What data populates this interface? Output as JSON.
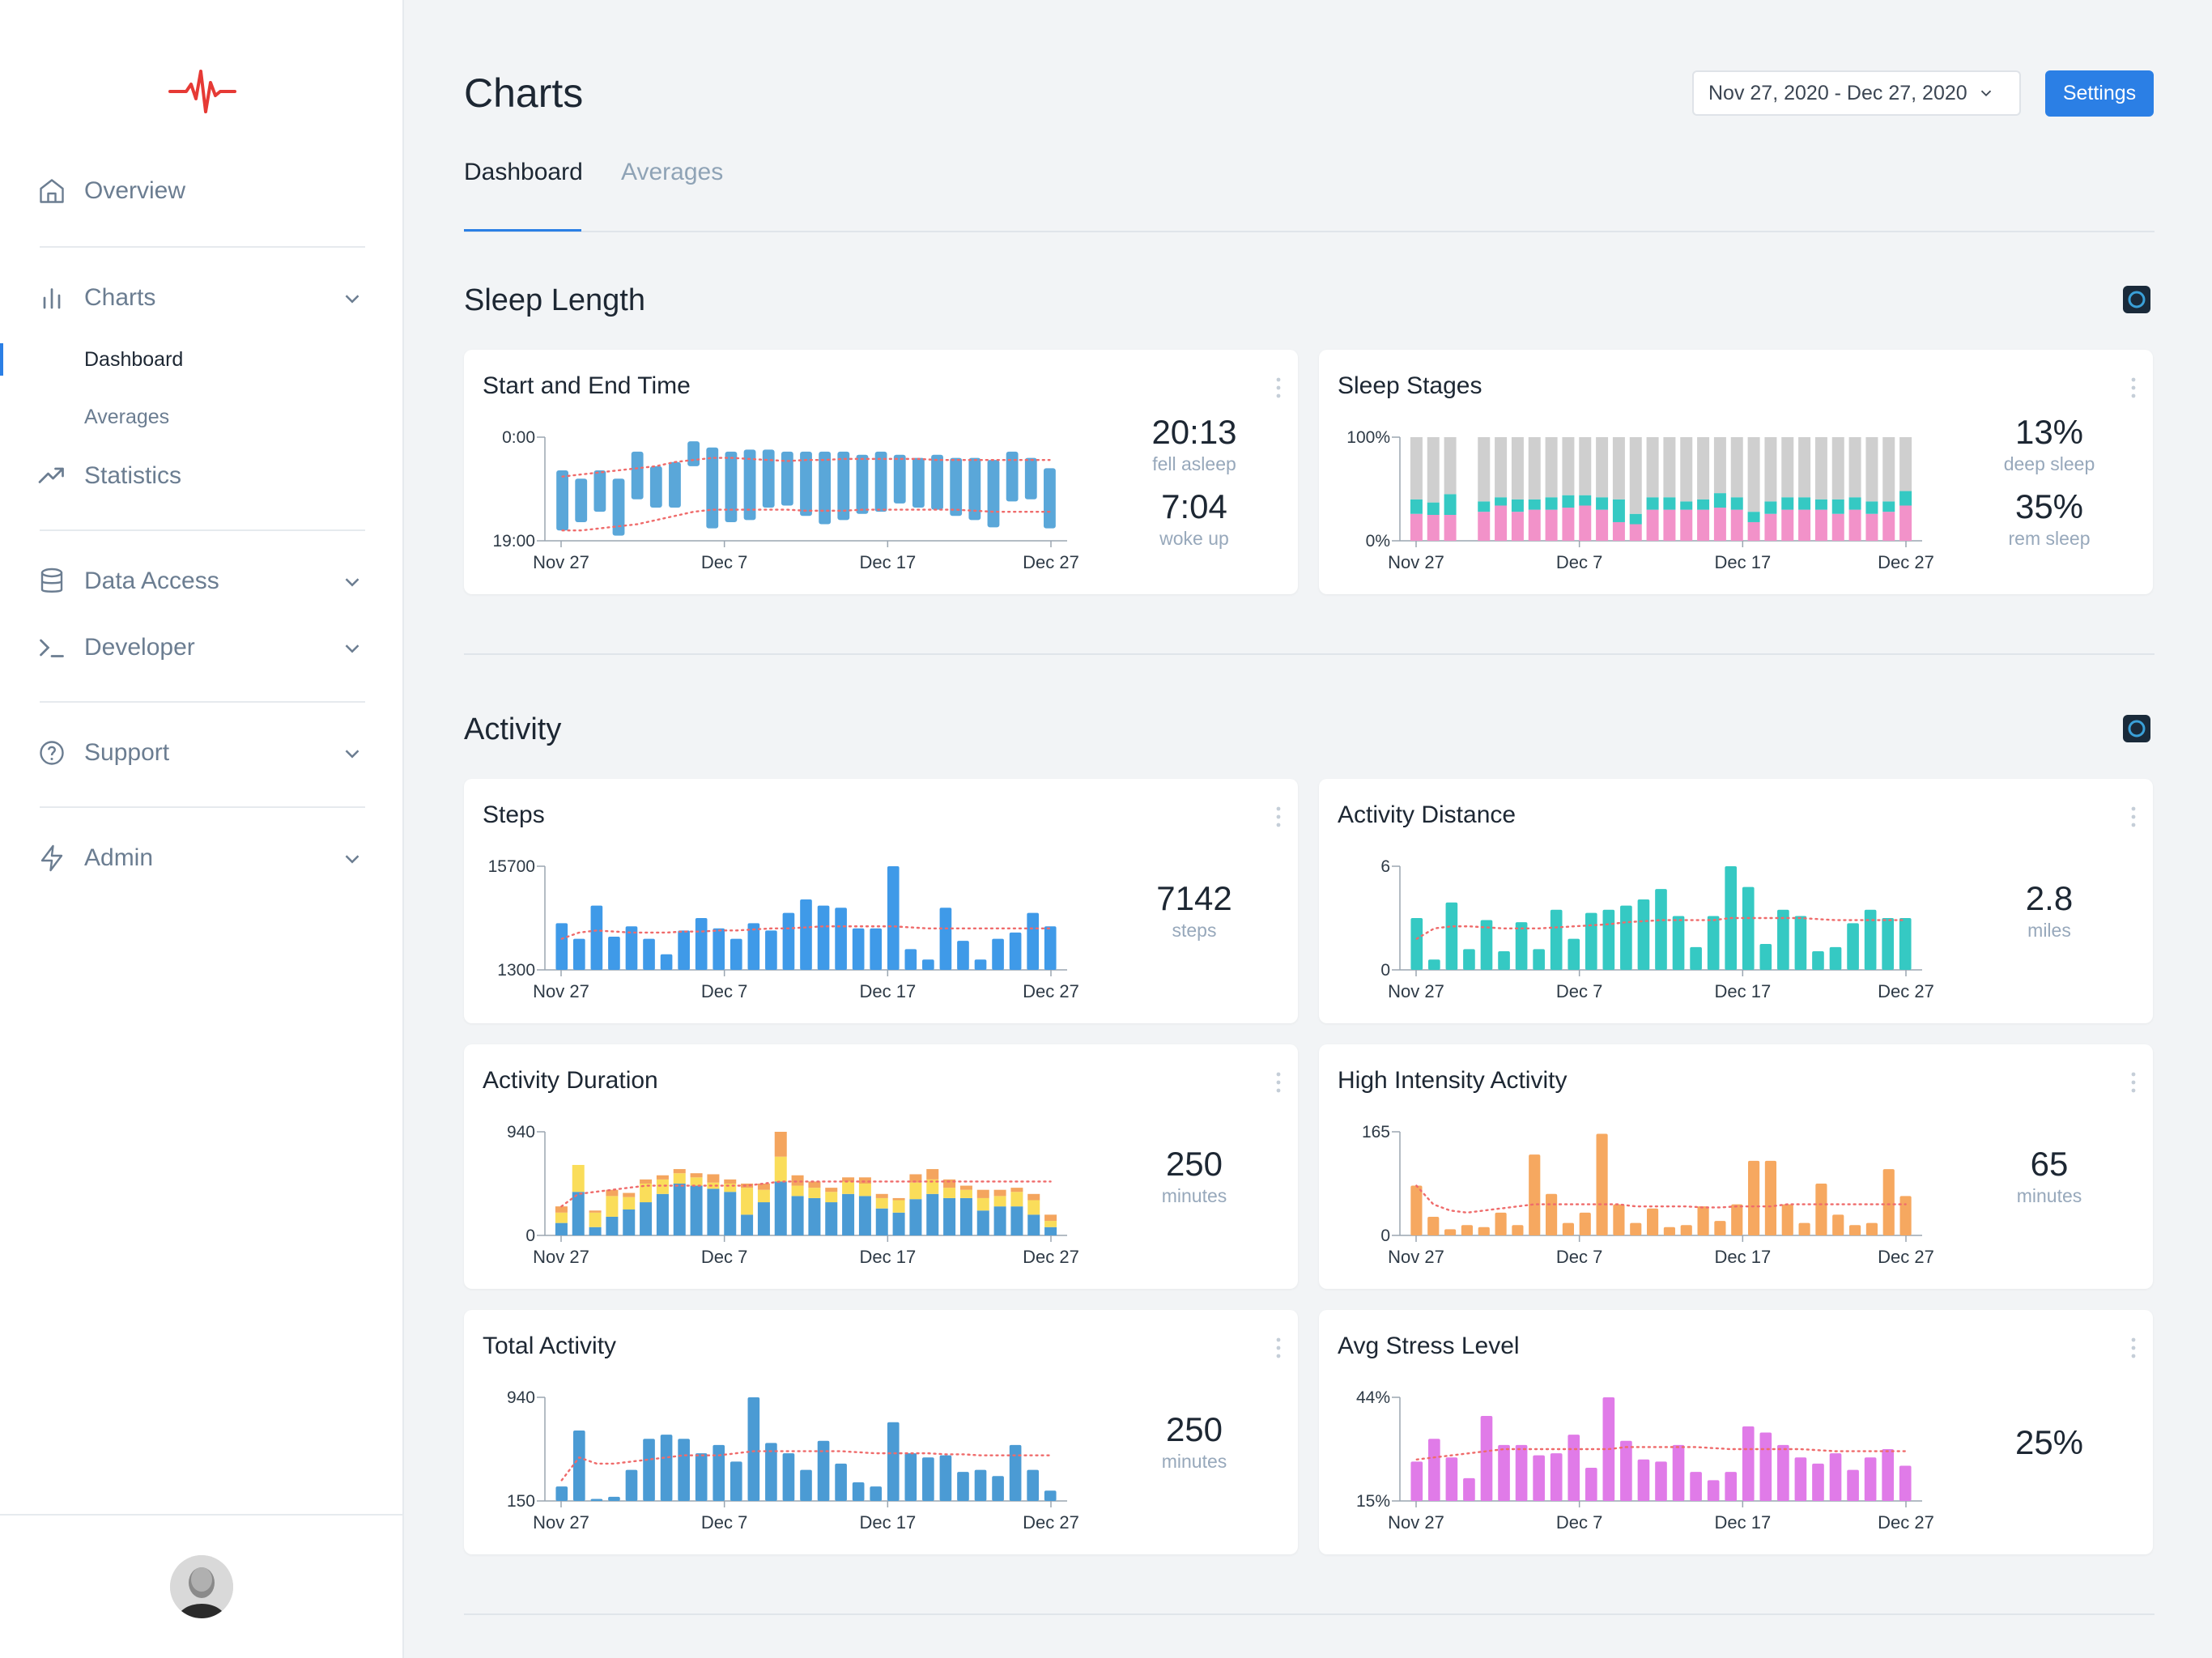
{
  "app": {
    "page_title": "Charts",
    "date_range": "Nov 27, 2020 - Dec 27, 2020",
    "settings_label": "Settings",
    "accent": "#2b7fe5"
  },
  "sidebar": {
    "logo": "heartbeat-logo-icon",
    "items": {
      "overview": "Overview",
      "charts": "Charts",
      "dashboard": "Dashboard",
      "averages": "Averages",
      "statistics": "Statistics",
      "data_access": "Data Access",
      "developer": "Developer",
      "support": "Support",
      "admin": "Admin"
    }
  },
  "tabs": {
    "dashboard": "Dashboard",
    "averages": "Averages"
  },
  "sections": {
    "sleep": "Sleep Length",
    "activity": "Activity"
  },
  "cards": {
    "start_end": {
      "title": "Start and End Time",
      "stat1_value": "20:13",
      "stat1_label": "fell asleep",
      "stat2_value": "7:04",
      "stat2_label": "woke up"
    },
    "sleep_stages": {
      "title": "Sleep Stages",
      "stat1_value": "13%",
      "stat1_label": "deep sleep",
      "stat2_value": "35%",
      "stat2_label": "rem sleep"
    },
    "steps": {
      "title": "Steps",
      "value": "7142",
      "label": "steps"
    },
    "distance": {
      "title": "Activity Distance",
      "value": "2.8",
      "label": "miles"
    },
    "duration": {
      "title": "Activity Duration",
      "value": "250",
      "label": "minutes"
    },
    "high_intensity": {
      "title": "High Intensity Activity",
      "value": "65",
      "label": "minutes"
    },
    "total": {
      "title": "Total Activity",
      "value": "250",
      "label": "minutes"
    },
    "stress": {
      "title": "Avg Stress Level",
      "value": "25%"
    }
  },
  "chart_data": [
    {
      "id": "start_end",
      "type": "bar",
      "subtype": "range",
      "title": "Start and End Time",
      "x_ticks": [
        "Nov 27",
        "Dec 7",
        "Dec 17",
        "Dec 27"
      ],
      "y_ticks": [
        "0:00",
        "19:00"
      ],
      "color": "#5aa7d9",
      "ranges": [
        [
          0.32,
          0.9
        ],
        [
          0.4,
          0.82
        ],
        [
          0.32,
          0.72
        ],
        [
          0.4,
          0.95
        ],
        [
          0.14,
          0.6
        ],
        [
          0.28,
          0.68
        ],
        [
          0.24,
          0.68
        ],
        [
          0.04,
          0.28
        ],
        [
          0.1,
          0.88
        ],
        [
          0.14,
          0.82
        ],
        [
          0.12,
          0.8
        ],
        [
          0.12,
          0.68
        ],
        [
          0.14,
          0.66
        ],
        [
          0.14,
          0.76
        ],
        [
          0.14,
          0.84
        ],
        [
          0.14,
          0.8
        ],
        [
          0.17,
          0.74
        ],
        [
          0.14,
          0.72
        ],
        [
          0.17,
          0.64
        ],
        [
          0.2,
          0.68
        ],
        [
          0.17,
          0.7
        ],
        [
          0.2,
          0.76
        ],
        [
          0.2,
          0.8
        ],
        [
          0.22,
          0.87
        ],
        [
          0.14,
          0.62
        ],
        [
          0.2,
          0.6
        ],
        [
          0.3,
          0.88
        ]
      ],
      "trend": [
        0.38,
        0.36,
        0.34,
        0.32,
        0.3,
        0.28,
        0.24,
        0.22,
        0.2,
        0.2,
        0.21,
        0.22,
        0.23,
        0.22,
        0.22,
        0.21,
        0.21,
        0.21,
        0.21,
        0.21,
        0.22,
        0.22,
        0.22,
        0.22,
        0.22,
        0.22,
        0.22
      ],
      "trend2": [
        0.9,
        0.9,
        0.88,
        0.86,
        0.84,
        0.8,
        0.76,
        0.72,
        0.7,
        0.7,
        0.7,
        0.7,
        0.7,
        0.71,
        0.71,
        0.71,
        0.7,
        0.7,
        0.7,
        0.7,
        0.7,
        0.7,
        0.71,
        0.72,
        0.72,
        0.72,
        0.72
      ]
    },
    {
      "id": "sleep_stages",
      "type": "bar",
      "subtype": "stacked",
      "title": "Sleep Stages",
      "x_ticks": [
        "Nov 27",
        "Dec 7",
        "Dec 17",
        "Dec 27"
      ],
      "y_ticks": [
        "100%",
        "0%"
      ],
      "series": [
        {
          "name": "rem",
          "color": "#f292c9",
          "values": [
            0.26,
            0.25,
            0.25,
            0,
            0.28,
            0.34,
            0.28,
            0.3,
            0.3,
            0.32,
            0.34,
            0.3,
            0.18,
            0.16,
            0.3,
            0.3,
            0.3,
            0.3,
            0.32,
            0.3,
            0.18,
            0.26,
            0.3,
            0.3,
            0.3,
            0.26,
            0.3,
            0.26,
            0.28,
            0.34
          ]
        },
        {
          "name": "deep",
          "color": "#35c9c3",
          "values": [
            0.14,
            0.12,
            0.2,
            0,
            0.1,
            0.08,
            0.12,
            0.1,
            0.12,
            0.12,
            0.1,
            0.12,
            0.22,
            0.1,
            0.12,
            0.12,
            0.08,
            0.1,
            0.14,
            0.12,
            0.1,
            0.12,
            0.12,
            0.12,
            0.1,
            0.14,
            0.12,
            0.12,
            0.1,
            0.14
          ]
        },
        {
          "name": "light",
          "color": "#cfcfcf",
          "values": [
            0.6,
            0.63,
            0.55,
            0,
            0.62,
            0.58,
            0.6,
            0.6,
            0.58,
            0.56,
            0.56,
            0.58,
            0.6,
            0.74,
            0.58,
            0.58,
            0.62,
            0.6,
            0.54,
            0.58,
            0.72,
            0.62,
            0.58,
            0.58,
            0.6,
            0.6,
            0.58,
            0.62,
            0.62,
            0.52
          ]
        }
      ]
    },
    {
      "id": "steps",
      "type": "bar",
      "title": "Steps",
      "x_ticks": [
        "Nov 27",
        "Dec 7",
        "Dec 17",
        "Dec 27"
      ],
      "y_ticks": [
        "15700",
        "1300"
      ],
      "color": "#3f9ae8",
      "values": [
        0.45,
        0.3,
        0.62,
        0.32,
        0.42,
        0.3,
        0.15,
        0.38,
        0.5,
        0.4,
        0.3,
        0.45,
        0.38,
        0.55,
        0.68,
        0.62,
        0.6,
        0.4,
        0.4,
        1.0,
        0.2,
        0.1,
        0.6,
        0.28,
        0.1,
        0.3,
        0.36,
        0.55,
        0.42
      ],
      "trend": [
        0.3,
        0.36,
        0.38,
        0.37,
        0.36,
        0.36,
        0.36,
        0.37,
        0.37,
        0.38,
        0.38,
        0.39,
        0.4,
        0.4,
        0.41,
        0.42,
        0.42,
        0.42,
        0.42,
        0.42,
        0.41,
        0.4,
        0.4,
        0.4,
        0.4,
        0.4,
        0.4,
        0.4,
        0.4
      ]
    },
    {
      "id": "distance",
      "type": "bar",
      "title": "Activity Distance",
      "x_ticks": [
        "Nov 27",
        "Dec 7",
        "Dec 17",
        "Dec 27"
      ],
      "y_ticks": [
        "6",
        "0"
      ],
      "color": "#35c9c3",
      "values": [
        0.5,
        0.1,
        0.65,
        0.2,
        0.48,
        0.18,
        0.46,
        0.2,
        0.58,
        0.3,
        0.55,
        0.58,
        0.62,
        0.68,
        0.78,
        0.52,
        0.22,
        0.52,
        1.0,
        0.8,
        0.25,
        0.58,
        0.52,
        0.18,
        0.22,
        0.45,
        0.58,
        0.5,
        0.5
      ],
      "trend": [
        0.3,
        0.4,
        0.42,
        0.42,
        0.41,
        0.4,
        0.4,
        0.4,
        0.41,
        0.42,
        0.43,
        0.44,
        0.46,
        0.47,
        0.48,
        0.48,
        0.48,
        0.48,
        0.5,
        0.5,
        0.5,
        0.5,
        0.5,
        0.49,
        0.48,
        0.48,
        0.48,
        0.48,
        0.48
      ]
    },
    {
      "id": "duration",
      "type": "bar",
      "subtype": "stacked",
      "title": "Activity Duration",
      "x_ticks": [
        "Nov 27",
        "Dec 7",
        "Dec 17",
        "Dec 27"
      ],
      "y_ticks": [
        "940",
        "0"
      ],
      "series": [
        {
          "name": "low",
          "color": "#4b9bd4",
          "values": [
            0.12,
            0.42,
            0.08,
            0.18,
            0.25,
            0.32,
            0.4,
            0.5,
            0.48,
            0.45,
            0.42,
            0.2,
            0.32,
            0.52,
            0.38,
            0.36,
            0.32,
            0.4,
            0.38,
            0.26,
            0.22,
            0.35,
            0.4,
            0.36,
            0.36,
            0.24,
            0.28,
            0.28,
            0.2,
            0.08
          ]
        },
        {
          "name": "moderate",
          "color": "#fadd5a",
          "values": [
            0.1,
            0.26,
            0.14,
            0.2,
            0.12,
            0.18,
            0.14,
            0.1,
            0.08,
            0.06,
            0.08,
            0.26,
            0.12,
            0.24,
            0.1,
            0.1,
            0.1,
            0.12,
            0.12,
            0.1,
            0.12,
            0.16,
            0.14,
            0.1,
            0.08,
            0.12,
            0.1,
            0.14,
            0.14,
            0.06
          ]
        },
        {
          "name": "vigorous",
          "color": "#f4a55e",
          "values": [
            0.06,
            0.0,
            0.02,
            0.06,
            0.04,
            0.04,
            0.04,
            0.04,
            0.04,
            0.08,
            0.04,
            0.04,
            0.06,
            0.24,
            0.1,
            0.06,
            0.04,
            0.04,
            0.06,
            0.04,
            0.02,
            0.08,
            0.1,
            0.08,
            0.04,
            0.08,
            0.06,
            0.04,
            0.06,
            0.06
          ]
        }
      ],
      "trend": [
        0.28,
        0.4,
        0.42,
        0.44,
        0.46,
        0.48,
        0.48,
        0.48,
        0.48,
        0.48,
        0.48,
        0.48,
        0.5,
        0.52,
        0.52,
        0.52,
        0.52,
        0.52,
        0.52,
        0.52,
        0.52,
        0.52,
        0.52,
        0.52,
        0.52,
        0.52,
        0.52,
        0.52,
        0.52,
        0.52
      ]
    },
    {
      "id": "high_intensity",
      "type": "bar",
      "title": "High Intensity Activity",
      "x_ticks": [
        "Nov 27",
        "Dec 7",
        "Dec 17",
        "Dec 27"
      ],
      "y_ticks": [
        "165",
        "0"
      ],
      "color": "#f6a860",
      "values": [
        0.48,
        0.18,
        0.06,
        0.1,
        0.08,
        0.22,
        0.1,
        0.78,
        0.4,
        0.12,
        0.22,
        0.98,
        0.3,
        0.12,
        0.26,
        0.08,
        0.1,
        0.28,
        0.14,
        0.3,
        0.72,
        0.72,
        0.3,
        0.12,
        0.5,
        0.2,
        0.1,
        0.12,
        0.64,
        0.38
      ],
      "trend": [
        0.48,
        0.3,
        0.24,
        0.22,
        0.24,
        0.26,
        0.28,
        0.3,
        0.3,
        0.3,
        0.3,
        0.3,
        0.3,
        0.28,
        0.28,
        0.28,
        0.28,
        0.27,
        0.27,
        0.28,
        0.28,
        0.28,
        0.3,
        0.3,
        0.3,
        0.3,
        0.3,
        0.3,
        0.3,
        0.3
      ]
    },
    {
      "id": "total",
      "type": "bar",
      "title": "Total Activity",
      "x_ticks": [
        "Nov 27",
        "Dec 7",
        "Dec 17",
        "Dec 27"
      ],
      "y_ticks": [
        "940",
        "150"
      ],
      "color": "#4b9bd4",
      "values": [
        0.14,
        0.68,
        0.02,
        0.04,
        0.3,
        0.6,
        0.64,
        0.6,
        0.46,
        0.54,
        0.38,
        1.0,
        0.56,
        0.46,
        0.3,
        0.58,
        0.36,
        0.18,
        0.14,
        0.76,
        0.46,
        0.42,
        0.44,
        0.28,
        0.3,
        0.24,
        0.54,
        0.3,
        0.1
      ],
      "trend": [
        0.2,
        0.42,
        0.36,
        0.36,
        0.38,
        0.4,
        0.42,
        0.44,
        0.44,
        0.44,
        0.46,
        0.48,
        0.48,
        0.48,
        0.48,
        0.48,
        0.48,
        0.47,
        0.46,
        0.46,
        0.46,
        0.46,
        0.45,
        0.45,
        0.44,
        0.44,
        0.44,
        0.44,
        0.44
      ]
    },
    {
      "id": "stress",
      "type": "bar",
      "title": "Avg Stress Level",
      "x_ticks": [
        "Nov 27",
        "Dec 7",
        "Dec 17",
        "Dec 27"
      ],
      "y_ticks": [
        "44%",
        "15%"
      ],
      "color": "#e07be8",
      "values": [
        0.38,
        0.6,
        0.42,
        0.22,
        0.82,
        0.54,
        0.54,
        0.44,
        0.46,
        0.64,
        0.32,
        1.0,
        0.58,
        0.4,
        0.38,
        0.54,
        0.28,
        0.2,
        0.28,
        0.72,
        0.66,
        0.54,
        0.42,
        0.36,
        0.46,
        0.3,
        0.42,
        0.5,
        0.34
      ],
      "trend": [
        0.4,
        0.42,
        0.44,
        0.46,
        0.48,
        0.5,
        0.5,
        0.5,
        0.5,
        0.5,
        0.5,
        0.5,
        0.52,
        0.52,
        0.52,
        0.52,
        0.52,
        0.51,
        0.5,
        0.5,
        0.5,
        0.5,
        0.5,
        0.49,
        0.48,
        0.48,
        0.48,
        0.48,
        0.48
      ]
    }
  ]
}
